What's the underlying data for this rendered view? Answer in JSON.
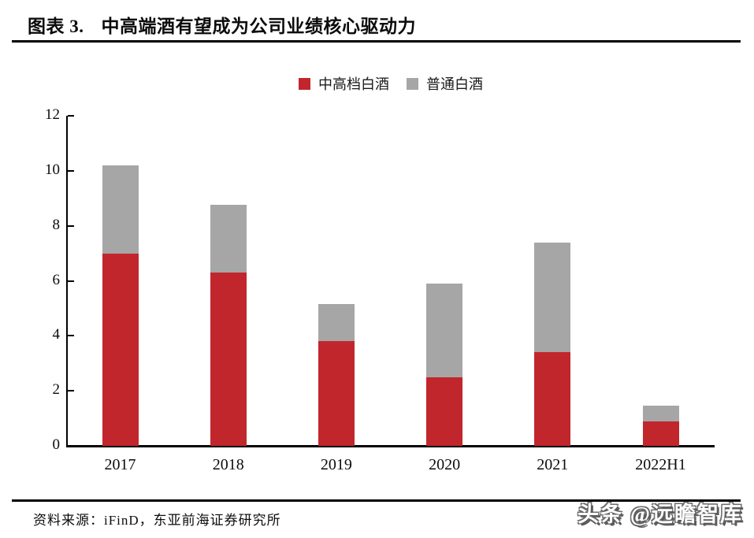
{
  "header": {
    "figure_label": "图表 3.",
    "title": "中高端酒有望成为公司业绩核心驱动力"
  },
  "chart_data": {
    "type": "bar",
    "stacked": true,
    "title": "中高端酒有望成为公司业绩核心驱动力",
    "categories": [
      "2017",
      "2018",
      "2019",
      "2020",
      "2021",
      "2022H1"
    ],
    "series": [
      {
        "name": "中高档白酒",
        "color": "#c2262d",
        "values": [
          7.0,
          6.3,
          3.8,
          2.5,
          3.4,
          0.9
        ]
      },
      {
        "name": "普通白酒",
        "color": "#a6a6a6",
        "values": [
          3.2,
          2.45,
          1.35,
          3.4,
          4.0,
          0.55
        ]
      }
    ],
    "totals": [
      10.2,
      8.75,
      5.15,
      5.9,
      7.4,
      1.45
    ],
    "xlabel": "",
    "ylabel": "",
    "ylim": [
      0,
      12
    ],
    "yticks": [
      0,
      2,
      4,
      6,
      8,
      10,
      12
    ],
    "grid": false,
    "legend_position": "top-center",
    "axis_color": "#000000"
  },
  "footer": {
    "source": "资料来源：iFinD，东亚前海证券研究所",
    "watermark": "头条 @远瞻智库"
  }
}
